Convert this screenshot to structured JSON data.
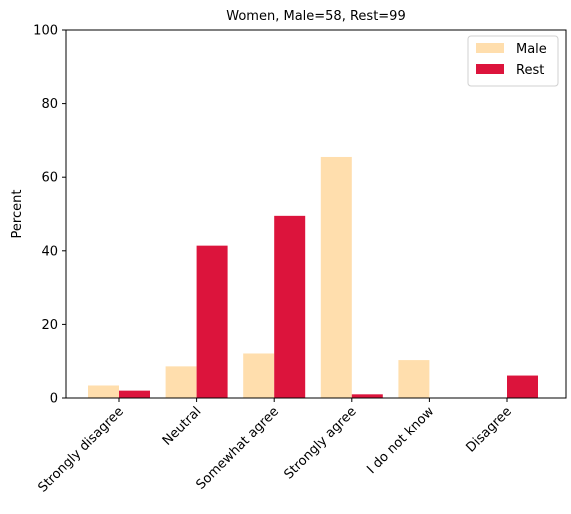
{
  "chart_data": {
    "type": "bar",
    "title": "Women, Male=58, Rest=99",
    "xlabel": "",
    "ylabel": "Percent",
    "ylim": [
      0,
      100
    ],
    "yticks": [
      0,
      20,
      40,
      60,
      80,
      100
    ],
    "categories": [
      "Strongly disagree",
      "Neutral",
      "Somewhat agree",
      "Strongly agree",
      "I do not know",
      "Disagree"
    ],
    "series": [
      {
        "name": "Male",
        "color": "#ffdead",
        "values": [
          3.4,
          8.6,
          12.1,
          65.5,
          10.3,
          0
        ]
      },
      {
        "name": "Rest",
        "color": "#dc143c",
        "values": [
          2.0,
          41.4,
          49.5,
          1.0,
          0,
          6.1
        ]
      }
    ],
    "legend": "top-right",
    "grid": false
  }
}
